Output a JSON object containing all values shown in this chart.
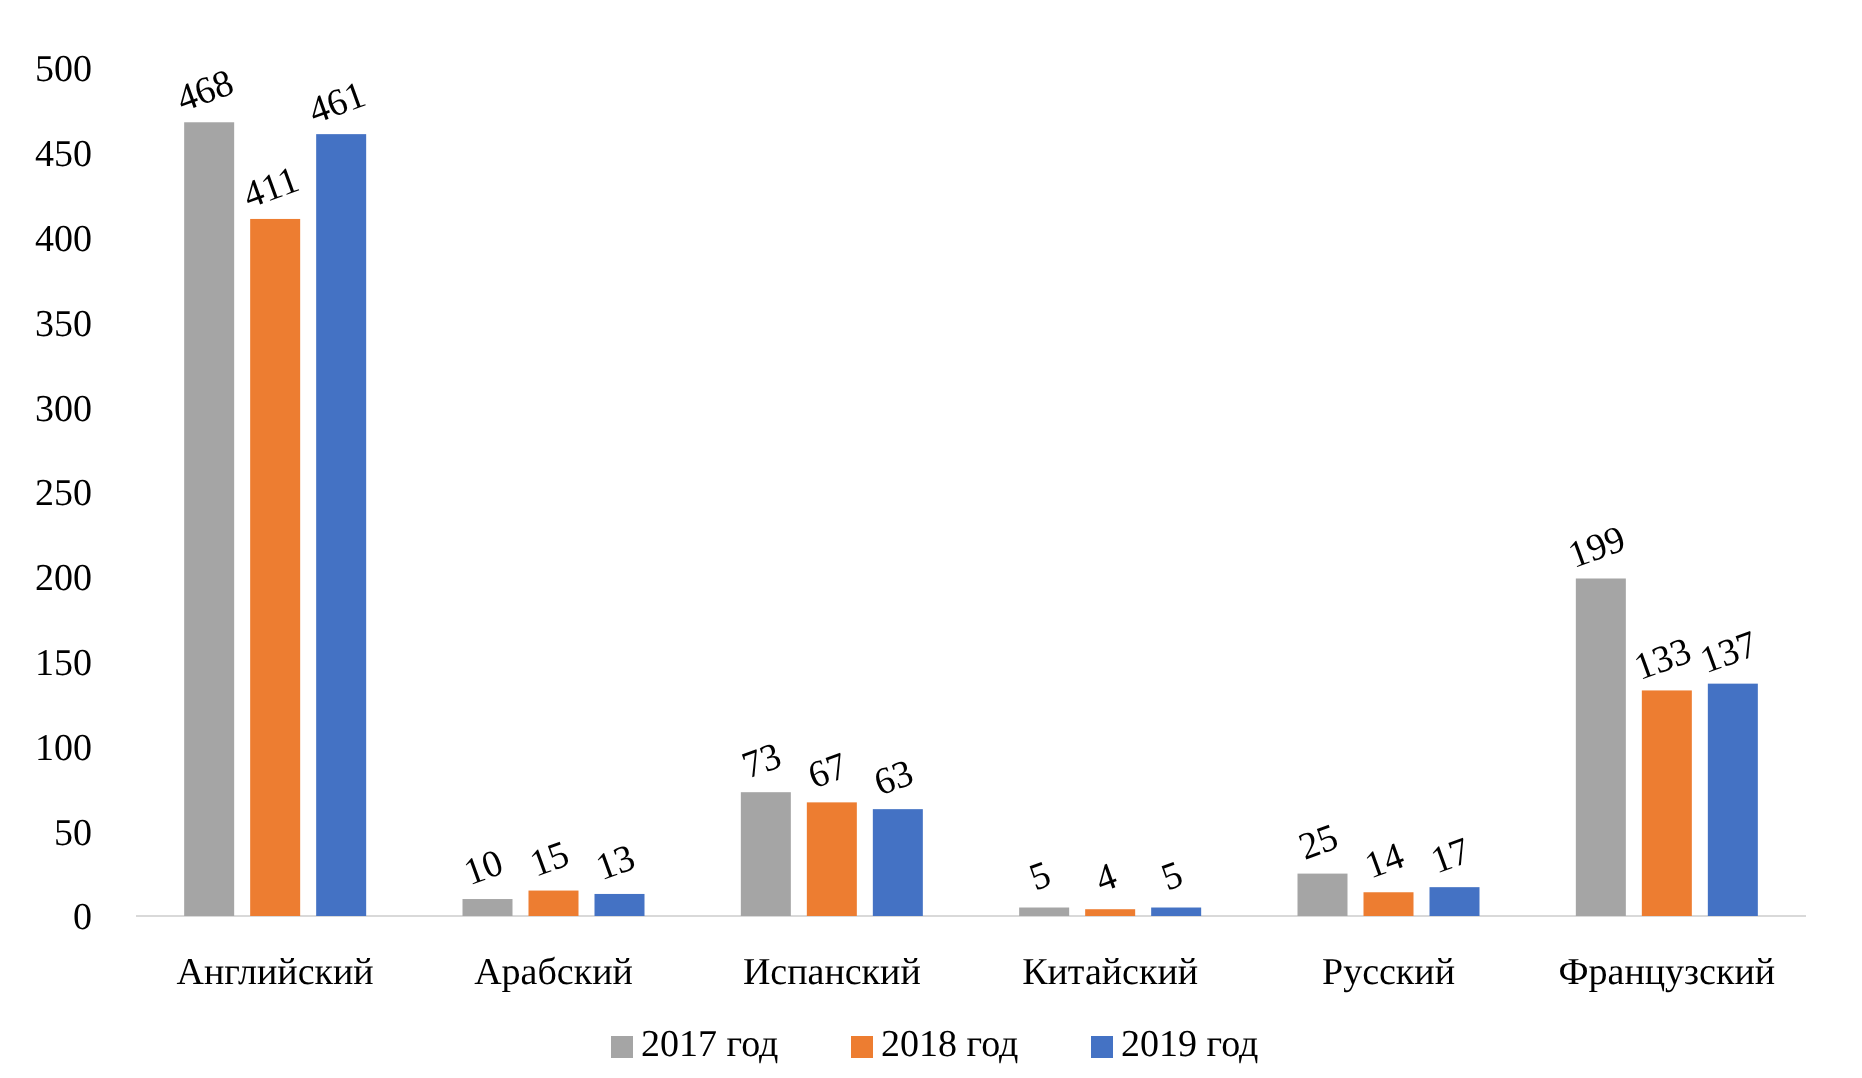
{
  "chart_data": {
    "type": "bar",
    "categories": [
      "Английский",
      "Арабский",
      "Испанский",
      "Китайский",
      "Русский",
      "Французский"
    ],
    "series": [
      {
        "name": "2017 год",
        "color": "#a5a5a5",
        "values": [
          468,
          10,
          73,
          5,
          25,
          199
        ]
      },
      {
        "name": "2018 год",
        "color": "#ed7d31",
        "values": [
          411,
          15,
          67,
          4,
          14,
          133
        ]
      },
      {
        "name": "2019 год",
        "color": "#4472c4",
        "values": [
          461,
          13,
          63,
          5,
          17,
          137
        ]
      }
    ],
    "ylim": [
      0,
      500
    ],
    "yticks": [
      0,
      50,
      100,
      150,
      200,
      250,
      300,
      350,
      400,
      450,
      500
    ],
    "grid": false,
    "data_labels": true,
    "legend": "bottom"
  }
}
